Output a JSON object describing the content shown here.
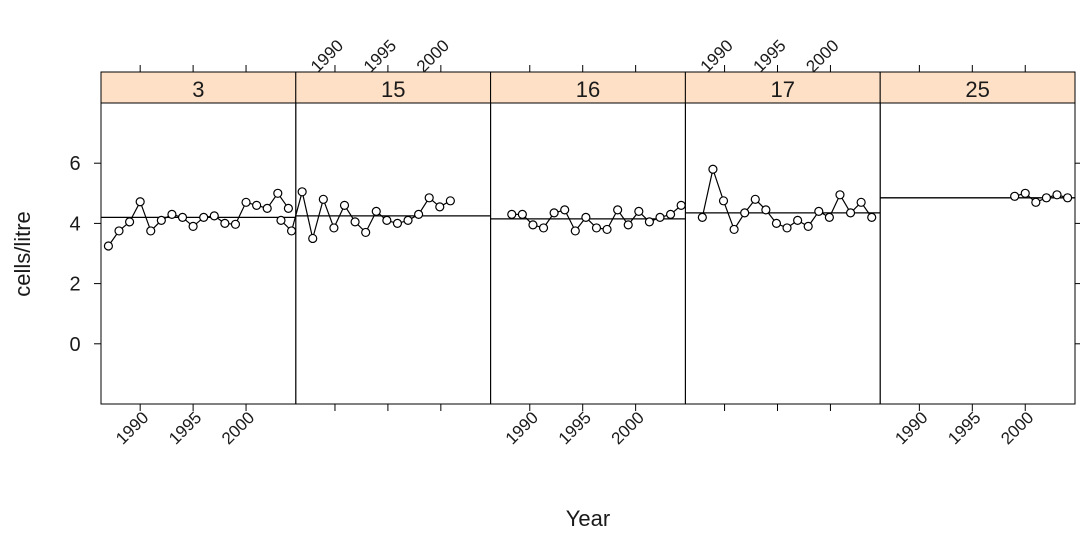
{
  "chart_data": {
    "type": "line",
    "layout": "trellis",
    "xlabel": "Year",
    "ylabel": "cells/litre",
    "xlim": [
      1986.3,
      2004.7
    ],
    "ylim": [
      -2.0,
      8.0
    ],
    "x_ticks": [
      1990,
      1995,
      2000
    ],
    "y_ticks": [
      0,
      2,
      4,
      6
    ],
    "colors": {
      "strip": "#fde0c5",
      "line": "#000000",
      "background": "#ffffff"
    },
    "panels": [
      {
        "label": "3",
        "x": [
          1987,
          1988,
          1989,
          1990,
          1991,
          1992,
          1993,
          1994,
          1995,
          1996,
          1997,
          1998,
          1999,
          2000,
          2001,
          2002,
          2003,
          2004
        ],
        "y": [
          3.25,
          3.75,
          4.05,
          4.72,
          3.75,
          4.1,
          4.3,
          4.2,
          3.9,
          4.2,
          4.25,
          4.0,
          3.97,
          4.7,
          4.6,
          4.5,
          5.0,
          4.5
        ],
        "ref": 4.2
      },
      {
        "label": "15",
        "x": [
          1984.9,
          1985.9,
          1986.9,
          1987.9,
          1988.9,
          1989.9,
          1990.9,
          1991.9,
          1992.9,
          1993.9,
          1994.9,
          1995.9,
          1996.9,
          1997.9,
          1998.9,
          1999.9,
          2000.9
        ],
        "y": [
          4.1,
          3.75,
          5.05,
          3.5,
          4.8,
          3.85,
          4.6,
          4.05,
          3.7,
          4.4,
          4.1,
          4.0,
          4.1,
          4.3,
          4.85,
          4.55,
          4.75
        ],
        "ref": 4.25
      },
      {
        "label": "16",
        "x": [
          1988.3,
          1989.3,
          1990.3,
          1991.3,
          1992.3,
          1993.3,
          1994.3,
          1995.3,
          1996.3,
          1997.3,
          1998.3,
          1999.3,
          2000.3,
          2001.3,
          2002.3,
          2003.3,
          2004.3
        ],
        "y": [
          4.3,
          4.3,
          3.95,
          3.85,
          4.35,
          4.45,
          3.75,
          4.2,
          3.85,
          3.8,
          4.45,
          3.95,
          4.4,
          4.05,
          4.2,
          4.3,
          4.6
        ],
        "ref": 4.15
      },
      {
        "label": "17",
        "x": [
          1987.9,
          1988.9,
          1989.9,
          1990.9,
          1991.9,
          1992.9,
          1993.9,
          1994.9,
          1995.9,
          1996.9,
          1997.9,
          1998.9,
          1999.9,
          2000.9,
          2001.9,
          2002.9,
          2003.9
        ],
        "y": [
          4.2,
          5.8,
          4.75,
          3.8,
          4.35,
          4.8,
          4.45,
          4.0,
          3.85,
          4.1,
          3.9,
          4.4,
          4.2,
          4.95,
          4.35,
          4.7,
          4.2
        ],
        "ref": 4.35
      },
      {
        "label": "25",
        "x": [
          1999,
          2000,
          2001,
          2002,
          2003,
          2004
        ],
        "y": [
          4.9,
          5.0,
          4.7,
          4.85,
          4.95,
          4.85
        ],
        "ref": 4.85
      }
    ]
  }
}
